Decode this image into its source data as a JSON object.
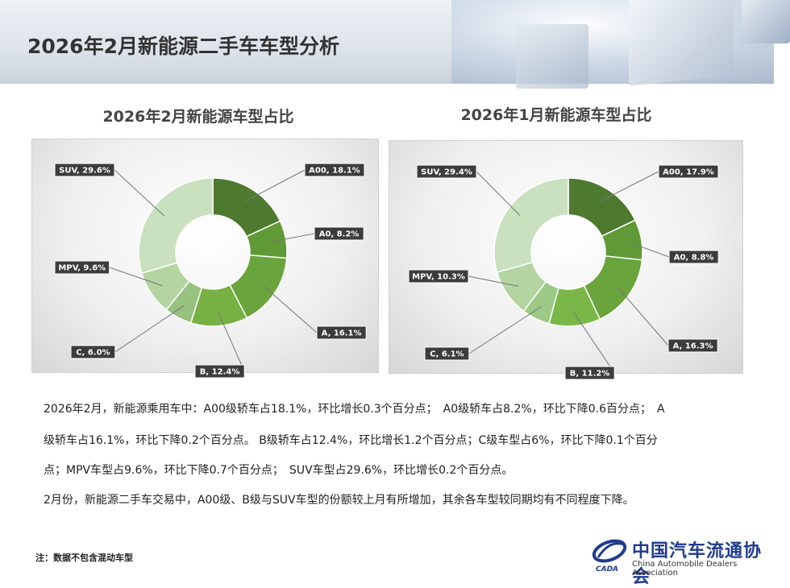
{
  "page_title": "2026年2月新能源二手车车型分析",
  "colors": {
    "label_bg": "#3c3c3c",
    "leader": "#777777"
  },
  "chart_data": [
    {
      "type": "pie",
      "style": "donut",
      "title": "2026年2月新能源车型占比",
      "categories": [
        "A00",
        "A0",
        "A",
        "B",
        "C",
        "MPV",
        "SUV"
      ],
      "values": [
        18.1,
        8.2,
        16.1,
        12.4,
        6.0,
        9.6,
        29.6
      ],
      "labels": [
        "A00, 18.1%",
        "A0, 8.2%",
        "A, 16.1%",
        "B, 12.4%",
        "C, 6.0%",
        "MPV, 9.6%",
        "SUV, 29.6%"
      ],
      "colors": [
        "#4e7a2f",
        "#5f9a36",
        "#69a43c",
        "#77b144",
        "#98c27f",
        "#b4d5a2",
        "#c9e1be"
      ]
    },
    {
      "type": "pie",
      "style": "donut",
      "title": "2026年1月新能源车型占比",
      "categories": [
        "A00",
        "A0",
        "A",
        "B",
        "C",
        "MPV",
        "SUV"
      ],
      "values": [
        17.9,
        8.8,
        16.3,
        11.2,
        6.1,
        10.3,
        29.4
      ],
      "labels": [
        "A00, 17.9%",
        "A0, 8.8%",
        "A, 16.3%",
        "B, 11.2%",
        "C, 6.1%",
        "MPV, 10.3%",
        "SUV, 29.4%"
      ],
      "colors": [
        "#4e7a2f",
        "#5f9a36",
        "#69a43c",
        "#7ab748",
        "#9cc985",
        "#b4d5a2",
        "#c9e1be"
      ]
    }
  ],
  "description": [
    "2026年2月，新能源乘用车中：A00级轿车占18.1%，环比增长0.3个百分点；　A0级轿车占8.2%，环比下降0.6百分点；　A",
    "级轿车占16.1%，环比下降0.2个百分点。 B级轿车占12.4%，环比增长1.2个百分点；C级车型占6%，环比下降0.1个百分",
    "点；MPV车型占9.6%，环比下降0.7个百分点；　SUV车型占29.6%，环比增长0.2个百分点。",
    "2月份，新能源二手车交易中，A00级、B级与SUV车型的份额较上月有所增加，其余各车型较同期均有不同程度下降。"
  ],
  "note": "注：数据不包含混动车型",
  "logo": {
    "cn": "中国汽车流通协会",
    "en": "China Automobile Dealers Association",
    "mark": "CADA"
  }
}
